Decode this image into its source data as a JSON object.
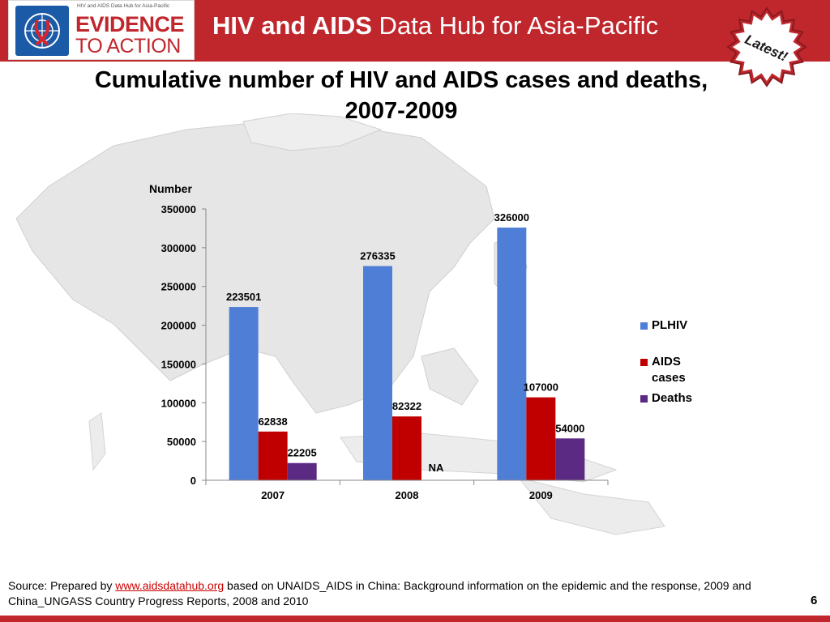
{
  "header": {
    "title_bold": "HIV and AIDS",
    "title_rest": " Data Hub for Asia-Pacific",
    "logo_small": "HIV and AIDS Data Hub for Asia-Pacific",
    "logo_line1": "EVIDENCE",
    "logo_line2": "TO ACTION",
    "badge_text": "Latest!"
  },
  "slide": {
    "title_line1": "Cumulative number of HIV and AIDS cases and deaths,",
    "title_line2": "2007-2009"
  },
  "chart_data": {
    "type": "bar",
    "ylabel": "Number",
    "ylim": [
      0,
      350000
    ],
    "yticks": [
      0,
      50000,
      100000,
      150000,
      200000,
      250000,
      300000,
      350000
    ],
    "categories": [
      "2007",
      "2008",
      "2009"
    ],
    "series": [
      {
        "name": "PLHIV",
        "color": "#4f7ed6",
        "values": [
          223501,
          276335,
          326000
        ],
        "labels": [
          "223501",
          "276335",
          "326000"
        ]
      },
      {
        "name": "AIDS cases",
        "color": "#c00000",
        "values": [
          62838,
          82322,
          107000
        ],
        "labels": [
          "62838",
          "82322",
          "107000"
        ]
      },
      {
        "name": "Deaths",
        "color": "#5b2a83",
        "values": [
          22205,
          null,
          54000
        ],
        "labels": [
          "22205",
          "NA",
          "54000"
        ]
      }
    ],
    "legend": "right",
    "grid": false
  },
  "footer": {
    "source_prefix": "Source: Prepared by ",
    "source_link": "www.aidsdatahub.org",
    "source_suffix": "  based on UNAIDS_AIDS in China: Background information on the epidemic and the response, 2009 and China_UNGASS Country Progress Reports, 2008 and 2010",
    "page_number": "6"
  }
}
